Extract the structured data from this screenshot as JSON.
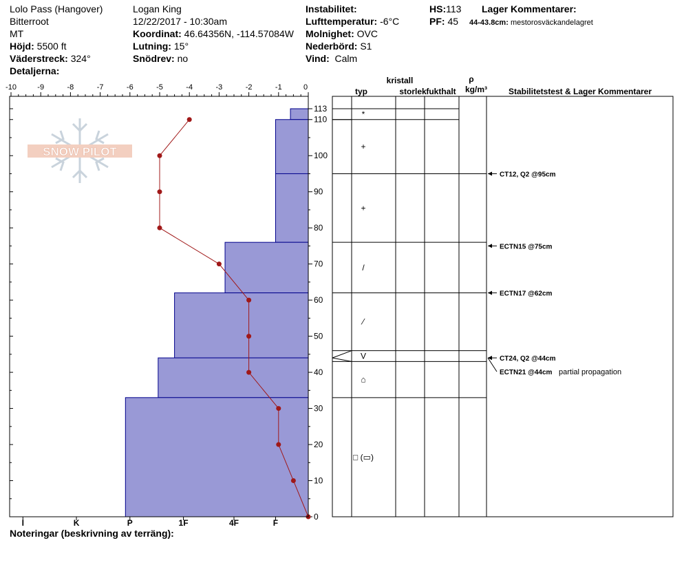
{
  "header": {
    "location": "Lolo Pass (Hangover)",
    "range": "Bitterroot",
    "state": "MT",
    "elevation_label": "Höjd:",
    "elevation_value": "5500 ft",
    "aspect_label": "Väderstreck:",
    "aspect_value": "324°",
    "details_label": "Detaljerna:",
    "observer": "Logan King",
    "datetime": "12/22/2017 - 10:30am",
    "coord_label": "Koordinat:",
    "coord_value": "46.64356N, -114.57084W",
    "slope_label": "Lutning:",
    "slope_value": "15°",
    "drift_label": "Snödrev:",
    "drift_value": "no",
    "instability_label": "Instabilitet:",
    "airtemp_label": "Lufttemperatur:",
    "airtemp_value": "-6°C",
    "cloud_label": "Molnighet:",
    "cloud_value": "OVC",
    "precip_label": "Nederbörd:",
    "precip_value": "S1",
    "wind_label": "Vind:",
    "wind_value": "Calm",
    "hs_label": "HS:",
    "hs_value": "113",
    "pf_label": "PF:",
    "pf_value": "45",
    "layer_comments_label": "Lager Kommentarer:",
    "layer_comment_range": "44-43.8cm:",
    "layer_comment_text": "mestorosväckandelagret"
  },
  "table_header": {
    "crystal": "kristall",
    "type": "typ",
    "size": "storlek",
    "moisture": "fukthalt",
    "rho": "ρ",
    "density_unit": "kg/m³",
    "stability": "Stabilitetstest & Lager Kommentarer"
  },
  "footer": {
    "notes_label": "Noteringar (beskrivning av terräng):"
  },
  "logo": {
    "text": "SNOW PILOT"
  },
  "colors": {
    "hardness_fill": "#9999d6",
    "hardness_edge": "#00008b",
    "temp_line": "#a01818"
  },
  "chart_data": {
    "type": "snow-profile",
    "temperature_axis": {
      "min": -10,
      "max": 0,
      "ticks": [
        "-10",
        "-9",
        "-8",
        "-7",
        "-6",
        "-5",
        "-4",
        "-3",
        "-2",
        "-1",
        "0"
      ]
    },
    "depth_axis": {
      "min": 0,
      "max": 113,
      "ticks": [
        "0",
        "10",
        "20",
        "30",
        "40",
        "50",
        "60",
        "70",
        "80",
        "90",
        "100",
        "110",
        "113"
      ]
    },
    "hardness_labels": [
      "I",
      "K",
      "P",
      "1F",
      "4F",
      "F"
    ],
    "hardness_layers": [
      {
        "top": 113,
        "bottom": 110,
        "temp_scale_width": -0.6
      },
      {
        "top": 110,
        "bottom": 95,
        "temp_scale_width": -1.1
      },
      {
        "top": 95,
        "bottom": 76,
        "temp_scale_width": -1.1
      },
      {
        "top": 76,
        "bottom": 62,
        "temp_scale_width": -2.8
      },
      {
        "top": 62,
        "bottom": 44,
        "temp_scale_width": -4.5
      },
      {
        "top": 44,
        "bottom": 33,
        "temp_scale_width": -5.05
      },
      {
        "top": 33,
        "bottom": 0,
        "temp_scale_width": -6.15
      }
    ],
    "temperature_profile": [
      {
        "depth": 110,
        "temp": -4
      },
      {
        "depth": 100,
        "temp": -5
      },
      {
        "depth": 90,
        "temp": -5
      },
      {
        "depth": 80,
        "temp": -5
      },
      {
        "depth": 70,
        "temp": -3
      },
      {
        "depth": 60,
        "temp": -2
      },
      {
        "depth": 50,
        "temp": -2
      },
      {
        "depth": 40,
        "temp": -2
      },
      {
        "depth": 30,
        "temp": -1
      },
      {
        "depth": 20,
        "temp": -1
      },
      {
        "depth": 10,
        "temp": -0.5
      },
      {
        "depth": 0,
        "temp": 0
      }
    ],
    "layers": [
      {
        "top": 113,
        "bottom": 110,
        "crystal": "*"
      },
      {
        "top": 110,
        "bottom": 95,
        "crystal": "+"
      },
      {
        "top": 95,
        "bottom": 76,
        "crystal": "+"
      },
      {
        "top": 76,
        "bottom": 62,
        "crystal": "/"
      },
      {
        "top": 62,
        "bottom": 46,
        "crystal": "⁄"
      },
      {
        "top": 46,
        "bottom": 43,
        "crystal": "V"
      },
      {
        "top": 43,
        "bottom": 33,
        "crystal": "⌂"
      },
      {
        "top": 33,
        "bottom": 0,
        "crystal": "□ (▭)"
      }
    ],
    "stability_tests": [
      {
        "depth": 95,
        "text": "CT12, Q2 @95cm"
      },
      {
        "depth": 75,
        "text": "ECTN15 @75cm"
      },
      {
        "depth": 62,
        "text": "ECTN17 @62cm"
      },
      {
        "depth": 44,
        "text": "CT24, Q2 @44cm"
      },
      {
        "depth": 44,
        "text": "ECTN21 @44cm",
        "note": "partial propagation"
      }
    ]
  }
}
